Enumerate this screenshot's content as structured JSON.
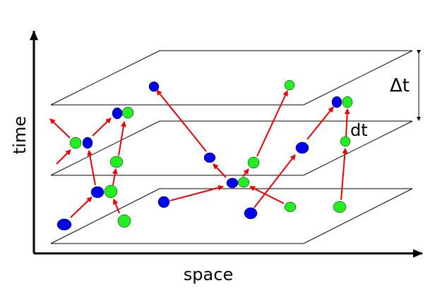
{
  "labels": {
    "x_axis": "space",
    "y_axis": "time",
    "delta_t": "Δt",
    "dt": "dt"
  },
  "colors": {
    "axis": "#000000",
    "plane_edge": "#000000",
    "arrow": "#ee0000",
    "blue_particle": "#0000ee",
    "green_particle": "#22ee22"
  },
  "legend_semantics": {
    "blue": "blue-particle",
    "green": "green-particle"
  }
}
